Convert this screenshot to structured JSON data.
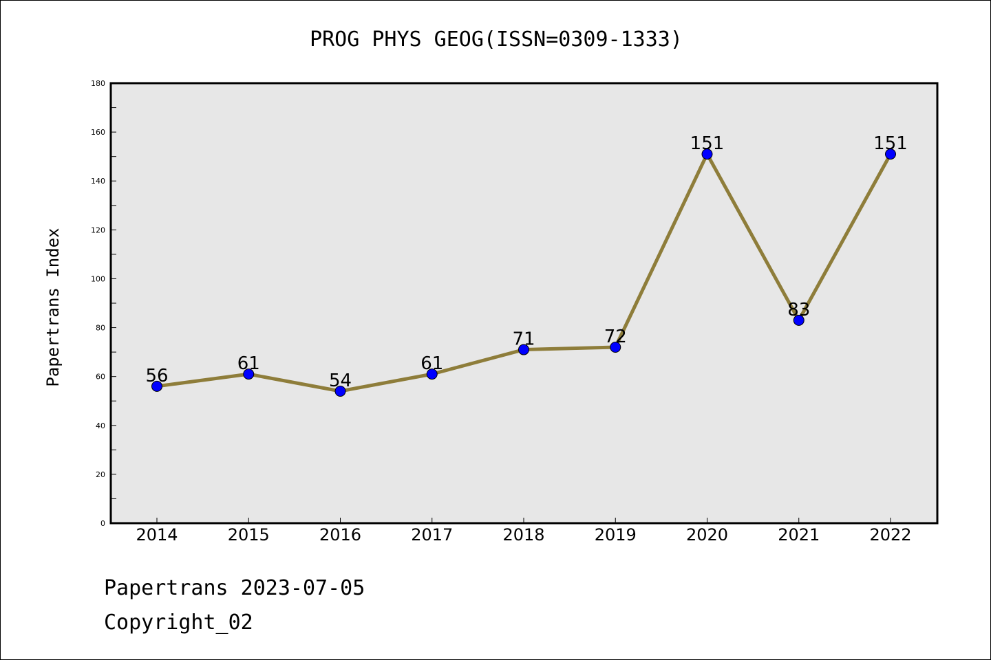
{
  "chart_data": {
    "type": "line",
    "title": "PROG PHYS GEOG(ISSN=0309-1333)",
    "xlabel": "",
    "ylabel": "Papertrans Index",
    "categories": [
      "2014",
      "2015",
      "2016",
      "2017",
      "2018",
      "2019",
      "2020",
      "2021",
      "2022"
    ],
    "series": [
      {
        "values": [
          56,
          61,
          54,
          61,
          71,
          72,
          151,
          83,
          151
        ]
      }
    ],
    "ylim": [
      0,
      180
    ],
    "yticks": [
      "0",
      "20",
      "40",
      "60",
      "80",
      "100",
      "120",
      "140",
      "160",
      "180"
    ],
    "data_labels": [
      "56",
      "61",
      "54",
      "61",
      "71",
      "72",
      "151",
      "83",
      "151"
    ],
    "grid": false,
    "legend": "none"
  },
  "footer": {
    "line1": "Papertrans 2023-07-05",
    "line2": "Copyright_02"
  },
  "colors": {
    "plot_background": "#e7e7e7",
    "line": "#8e7d3a",
    "marker": "#0000ff",
    "marker_edge": "#000000"
  }
}
